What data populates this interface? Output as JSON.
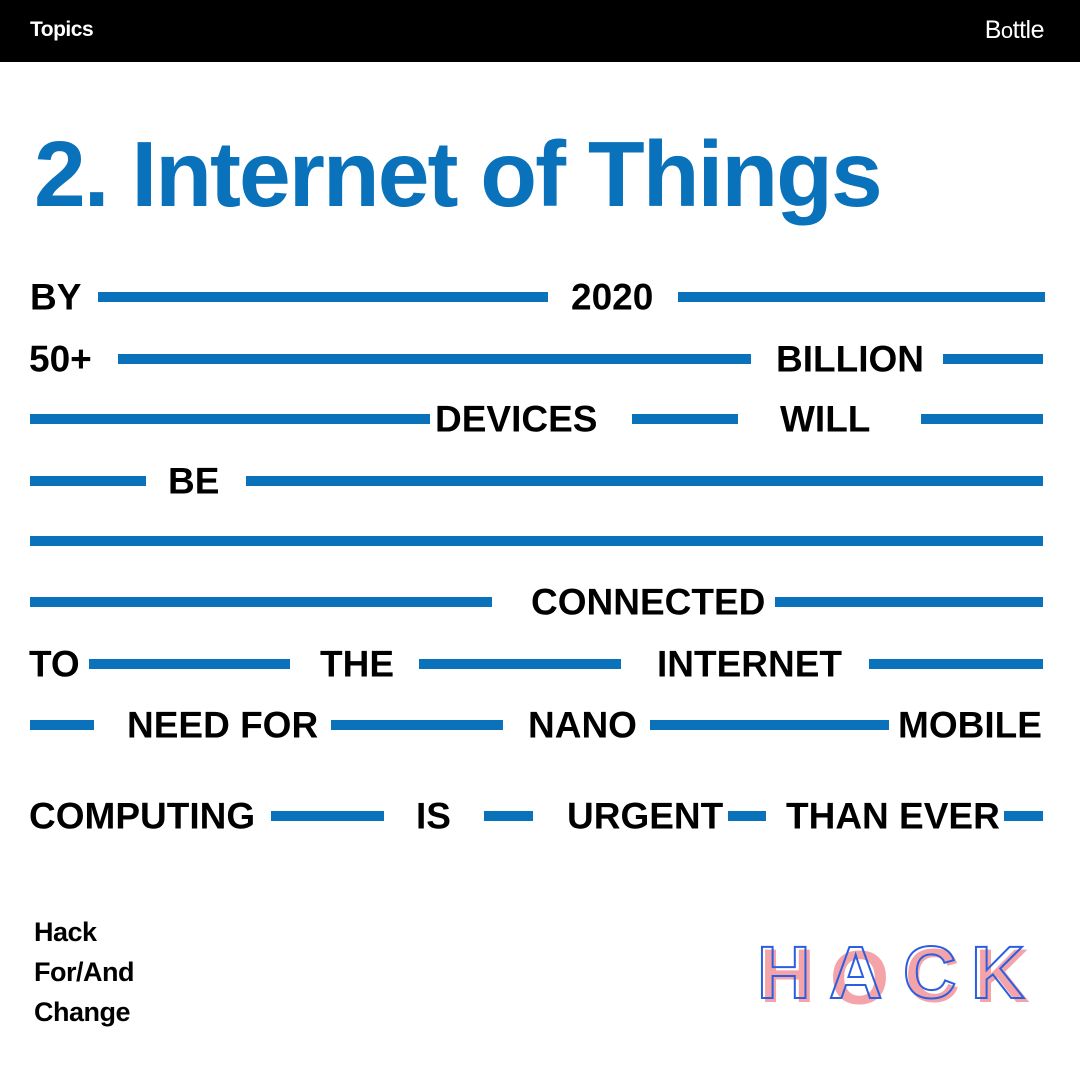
{
  "header": {
    "section_label": "Topics",
    "brand_prefix": "B",
    "brand_o": "o",
    "brand_suffix": "ttle"
  },
  "title": "2. Internet of Things",
  "words": {
    "w1": "BY",
    "w2": "2020",
    "w3": "50+",
    "w4": "BILLION",
    "w5": "DEVICES",
    "w6": "WILL",
    "w7": "BE",
    "w8": "CONNECTED",
    "w9": "TO",
    "w10": "THE",
    "w11": "INTERNET",
    "w12": "NEED FOR",
    "w13": "NANO",
    "w14": "MOBILE",
    "w15": "COMPUTING",
    "w16": "IS",
    "w17": "URGENT",
    "w18": "THAN EVER"
  },
  "footer": {
    "line1": "Hack",
    "line2": "For/And",
    "line3": "Change",
    "logo_text": "HACK"
  },
  "colors": {
    "accent_blue": "#0a72ba",
    "logo_pink": "#f4a3a8",
    "logo_outline_blue": "#2b5fe0",
    "text": "#000000",
    "background": "#ffffff",
    "header_bg": "#000000"
  }
}
